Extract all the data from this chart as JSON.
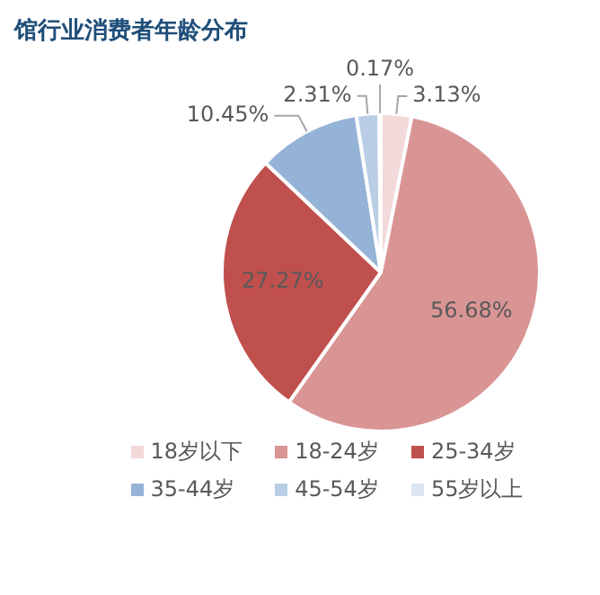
{
  "chart_data": {
    "type": "pie",
    "title": "馆行业消费者年龄分布",
    "categories": [
      "18岁以下",
      "18-24岁",
      "25-34岁",
      "35-44岁",
      "45-54岁",
      "55岁以上"
    ],
    "values": [
      3.13,
      56.68,
      27.27,
      10.45,
      2.31,
      0.17
    ],
    "colors": [
      "#f2d9da",
      "#d99594",
      "#c0504d",
      "#95b3d7",
      "#b9cde5",
      "#dce6f2"
    ],
    "value_labels": [
      "3.13%",
      "56.68%",
      "27.27%",
      "10.45%",
      "2.31%",
      "0.17%"
    ],
    "legend": "bottom"
  }
}
